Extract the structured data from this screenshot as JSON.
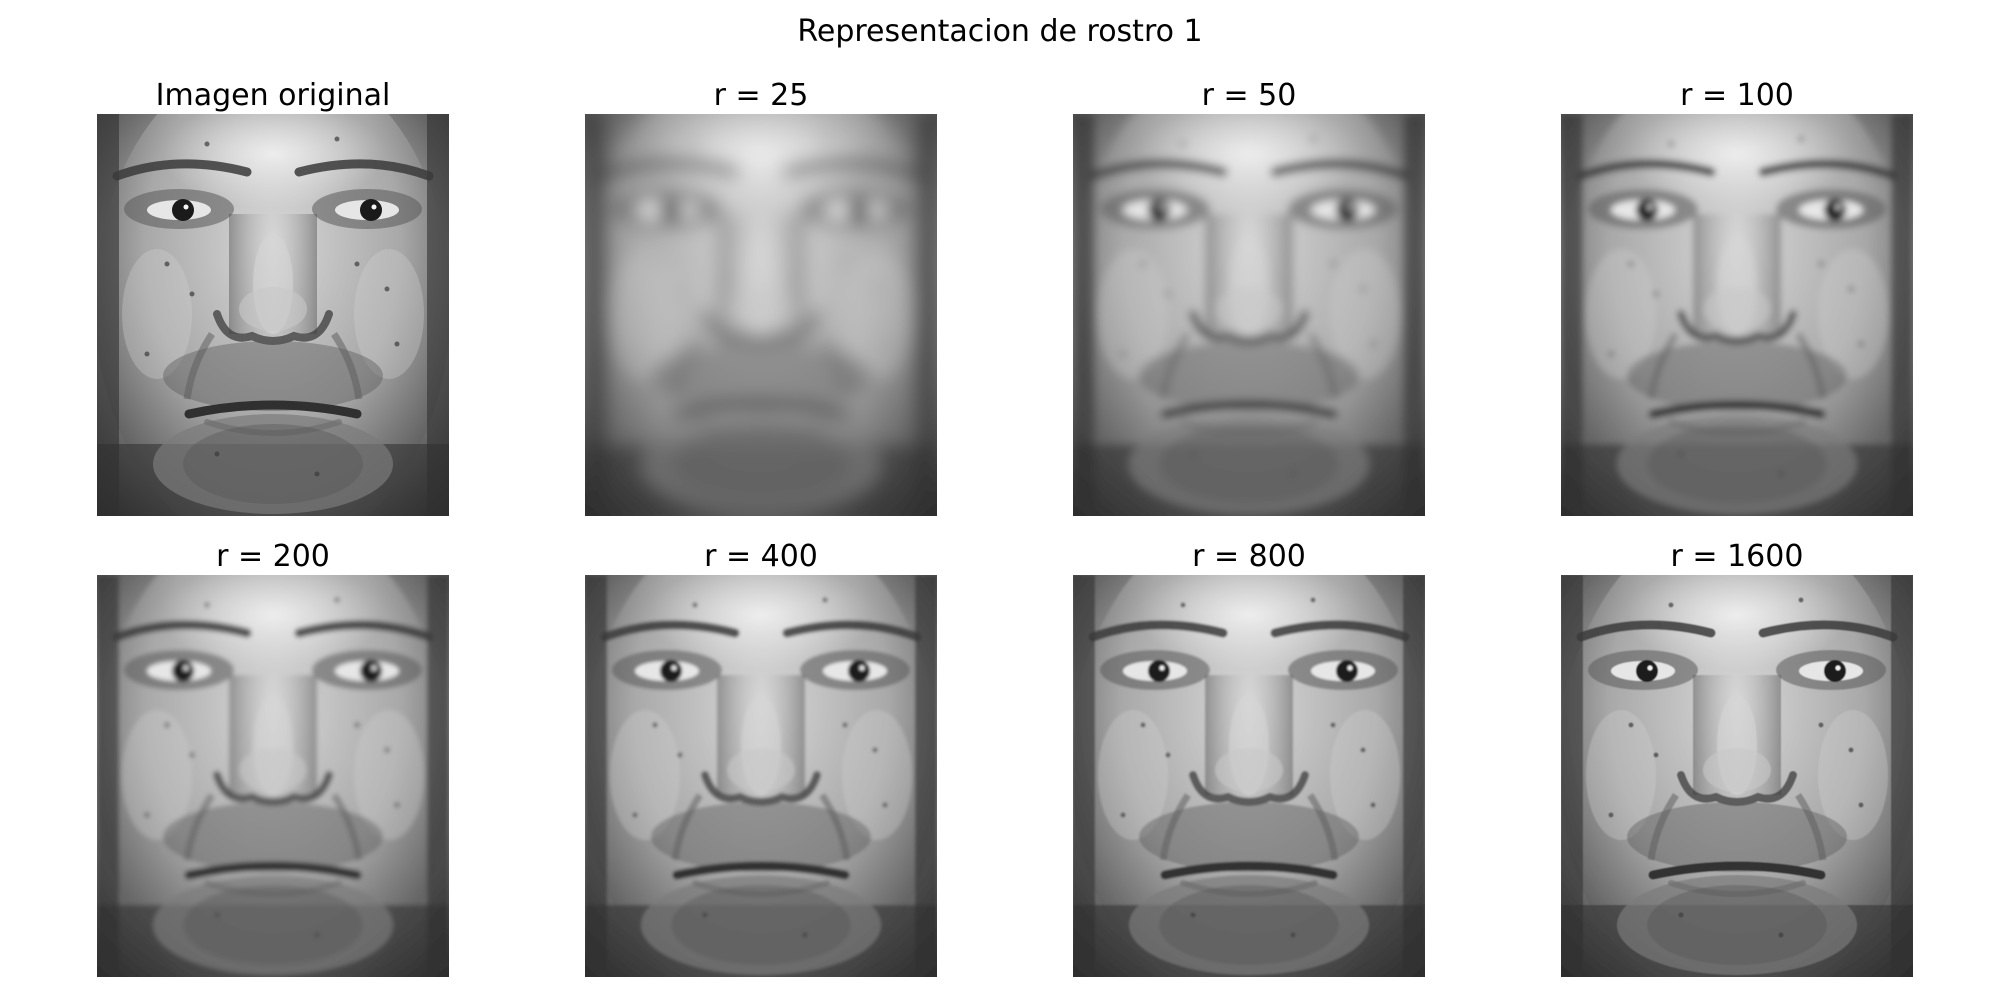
{
  "figure": {
    "title": "Representacion de rostro 1"
  },
  "panels": [
    {
      "title": "Imagen original",
      "blur": 0.0
    },
    {
      "title": "r = 25",
      "blur": 9.0
    },
    {
      "title": "r = 50",
      "blur": 4.5
    },
    {
      "title": "r = 100",
      "blur": 3.2
    },
    {
      "title": "r = 200",
      "blur": 2.4
    },
    {
      "title": "r = 400",
      "blur": 1.6
    },
    {
      "title": "r = 800",
      "blur": 1.0
    },
    {
      "title": "r = 1600",
      "blur": 0.6
    }
  ]
}
